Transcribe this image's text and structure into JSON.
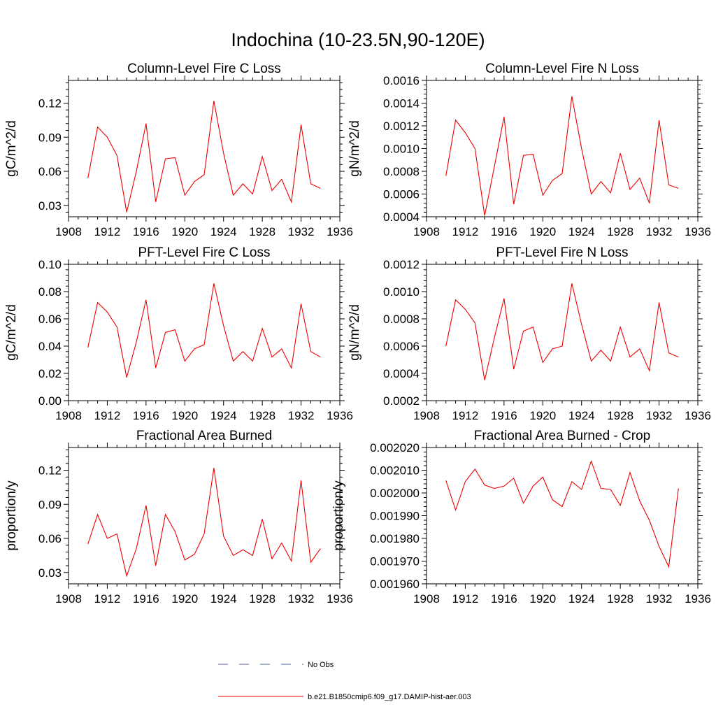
{
  "suptitle": "Indochina (10-23.5N,90-120E)",
  "legend": {
    "items": [
      {
        "label": "No Obs",
        "color": "#5566aa",
        "dash": true
      },
      {
        "label": "b.e21.B1850cmip6.f09_g17.DAMIP-hist-aer.003",
        "color": "#ee0000",
        "dash": false
      }
    ]
  },
  "chart_data": [
    {
      "type": "line",
      "title": "Column-Level Fire C Loss",
      "ylabel": "gC/m^2/d",
      "xlim": [
        1908,
        1936
      ],
      "ylim": [
        0.02,
        0.14
      ],
      "xticks": [
        1908,
        1912,
        1916,
        1920,
        1924,
        1928,
        1932,
        1936
      ],
      "yticks": [
        0.03,
        0.06,
        0.09,
        0.12
      ],
      "ytick_labels": [
        "0.03",
        "0.06",
        "0.09",
        "0.12"
      ],
      "series": [
        {
          "color": "#ee0000",
          "x": [
            1910,
            1911,
            1912,
            1913,
            1914,
            1915,
            1916,
            1917,
            1918,
            1919,
            1920,
            1921,
            1922,
            1923,
            1924,
            1925,
            1926,
            1927,
            1928,
            1929,
            1930,
            1931,
            1932,
            1933,
            1934
          ],
          "values": [
            0.054,
            0.099,
            0.09,
            0.074,
            0.024,
            0.06,
            0.102,
            0.033,
            0.071,
            0.072,
            0.039,
            0.051,
            0.057,
            0.122,
            0.076,
            0.039,
            0.049,
            0.04,
            0.073,
            0.043,
            0.053,
            0.033,
            0.101,
            0.049,
            0.045
          ]
        }
      ]
    },
    {
      "type": "line",
      "title": "Column-Level Fire N Loss",
      "ylabel": "gN/m^2/d",
      "xlim": [
        1908,
        1936
      ],
      "ylim": [
        0.0004,
        0.0016
      ],
      "xticks": [
        1908,
        1912,
        1916,
        1920,
        1924,
        1928,
        1932,
        1936
      ],
      "yticks": [
        0.0004,
        0.0006,
        0.0008,
        0.001,
        0.0012,
        0.0014,
        0.0016
      ],
      "ytick_labels": [
        "0.0004",
        "0.0006",
        "0.0008",
        "0.0010",
        "0.0012",
        "0.0014",
        "0.0016"
      ],
      "series": [
        {
          "color": "#ee0000",
          "x": [
            1910,
            1911,
            1912,
            1913,
            1914,
            1915,
            1916,
            1917,
            1918,
            1919,
            1920,
            1921,
            1922,
            1923,
            1924,
            1925,
            1926,
            1927,
            1928,
            1929,
            1930,
            1931,
            1932,
            1933,
            1934
          ],
          "values": [
            0.00076,
            0.00125,
            0.00114,
            0.001,
            0.00041,
            0.00084,
            0.00128,
            0.00051,
            0.00094,
            0.00095,
            0.00059,
            0.00072,
            0.00078,
            0.00146,
            0.001,
            0.0006,
            0.00071,
            0.00061,
            0.00096,
            0.00064,
            0.00074,
            0.00052,
            0.00125,
            0.00068,
            0.00065
          ]
        }
      ]
    },
    {
      "type": "line",
      "title": "PFT-Level Fire C Loss",
      "ylabel": "gC/m^2/d",
      "xlim": [
        1908,
        1936
      ],
      "ylim": [
        0.0,
        0.1
      ],
      "xticks": [
        1908,
        1912,
        1916,
        1920,
        1924,
        1928,
        1932,
        1936
      ],
      "yticks": [
        0.0,
        0.02,
        0.04,
        0.06,
        0.08,
        0.1
      ],
      "ytick_labels": [
        "0.00",
        "0.02",
        "0.04",
        "0.06",
        "0.08",
        "0.10"
      ],
      "series": [
        {
          "color": "#ee0000",
          "x": [
            1910,
            1911,
            1912,
            1913,
            1914,
            1915,
            1916,
            1917,
            1918,
            1919,
            1920,
            1921,
            1922,
            1923,
            1924,
            1925,
            1926,
            1927,
            1928,
            1929,
            1930,
            1931,
            1932,
            1933,
            1934
          ],
          "values": [
            0.039,
            0.072,
            0.065,
            0.054,
            0.017,
            0.043,
            0.074,
            0.024,
            0.05,
            0.052,
            0.029,
            0.038,
            0.041,
            0.086,
            0.055,
            0.029,
            0.036,
            0.029,
            0.053,
            0.032,
            0.038,
            0.024,
            0.071,
            0.036,
            0.032
          ]
        }
      ]
    },
    {
      "type": "line",
      "title": "PFT-Level Fire N Loss",
      "ylabel": "gN/m^2/d",
      "xlim": [
        1908,
        1936
      ],
      "ylim": [
        0.0002,
        0.0012
      ],
      "xticks": [
        1908,
        1912,
        1916,
        1920,
        1924,
        1928,
        1932,
        1936
      ],
      "yticks": [
        0.0002,
        0.0004,
        0.0006,
        0.0008,
        0.001,
        0.0012
      ],
      "ytick_labels": [
        "0.0002",
        "0.0004",
        "0.0006",
        "0.0008",
        "0.0010",
        "0.0012"
      ],
      "series": [
        {
          "color": "#ee0000",
          "x": [
            1910,
            1911,
            1912,
            1913,
            1914,
            1915,
            1916,
            1917,
            1918,
            1919,
            1920,
            1921,
            1922,
            1923,
            1924,
            1925,
            1926,
            1927,
            1928,
            1929,
            1930,
            1931,
            1932,
            1933,
            1934
          ],
          "values": [
            0.0006,
            0.00094,
            0.00087,
            0.00077,
            0.00035,
            0.00066,
            0.00095,
            0.00043,
            0.00071,
            0.00074,
            0.00048,
            0.00058,
            0.0006,
            0.00106,
            0.00076,
            0.00049,
            0.00057,
            0.00049,
            0.00074,
            0.00052,
            0.00058,
            0.00042,
            0.00092,
            0.00055,
            0.00052
          ]
        }
      ]
    },
    {
      "type": "line",
      "title": "Fractional Area Burned",
      "ylabel": "proportion/y",
      "xlim": [
        1908,
        1936
      ],
      "ylim": [
        0.02,
        0.14
      ],
      "xticks": [
        1908,
        1912,
        1916,
        1920,
        1924,
        1928,
        1932,
        1936
      ],
      "yticks": [
        0.03,
        0.06,
        0.09,
        0.12
      ],
      "ytick_labels": [
        "0.03",
        "0.06",
        "0.09",
        "0.12"
      ],
      "series": [
        {
          "color": "#ee0000",
          "x": [
            1910,
            1911,
            1912,
            1913,
            1914,
            1915,
            1916,
            1917,
            1918,
            1919,
            1920,
            1921,
            1922,
            1923,
            1924,
            1925,
            1926,
            1927,
            1928,
            1929,
            1930,
            1931,
            1932,
            1933,
            1934
          ],
          "values": [
            0.055,
            0.081,
            0.06,
            0.064,
            0.027,
            0.051,
            0.089,
            0.036,
            0.081,
            0.066,
            0.041,
            0.046,
            0.064,
            0.122,
            0.062,
            0.045,
            0.05,
            0.045,
            0.077,
            0.042,
            0.056,
            0.04,
            0.111,
            0.039,
            0.051
          ]
        }
      ]
    },
    {
      "type": "line",
      "title": "Fractional Area Burned - Crop",
      "ylabel": "proportion/y",
      "xlim": [
        1908,
        1936
      ],
      "ylim": [
        0.00196,
        0.00202
      ],
      "xticks": [
        1908,
        1912,
        1916,
        1920,
        1924,
        1928,
        1932,
        1936
      ],
      "yticks": [
        0.00196,
        0.00197,
        0.00198,
        0.00199,
        0.002,
        0.00201,
        0.00202
      ],
      "ytick_labels": [
        "0.001960",
        "0.001970",
        "0.001980",
        "0.001990",
        "0.002000",
        "0.002010",
        "0.002020"
      ],
      "series": [
        {
          "color": "#ee0000",
          "x": [
            1910,
            1911,
            1912,
            1913,
            1914,
            1915,
            1916,
            1917,
            1918,
            1919,
            1920,
            1921,
            1922,
            1923,
            1924,
            1925,
            1926,
            1927,
            1928,
            1929,
            1930,
            1931,
            1932,
            1933,
            1934
          ],
          "values": [
            0.0020055,
            0.0019925,
            0.002005,
            0.0020105,
            0.0020035,
            0.002002,
            0.002003,
            0.0020065,
            0.0019955,
            0.002003,
            0.002007,
            0.001997,
            0.001994,
            0.002005,
            0.0020015,
            0.002014,
            0.002002,
            0.0020015,
            0.0019945,
            0.002009,
            0.0019965,
            0.001988,
            0.0019765,
            0.0019675,
            0.002002
          ]
        }
      ]
    }
  ]
}
